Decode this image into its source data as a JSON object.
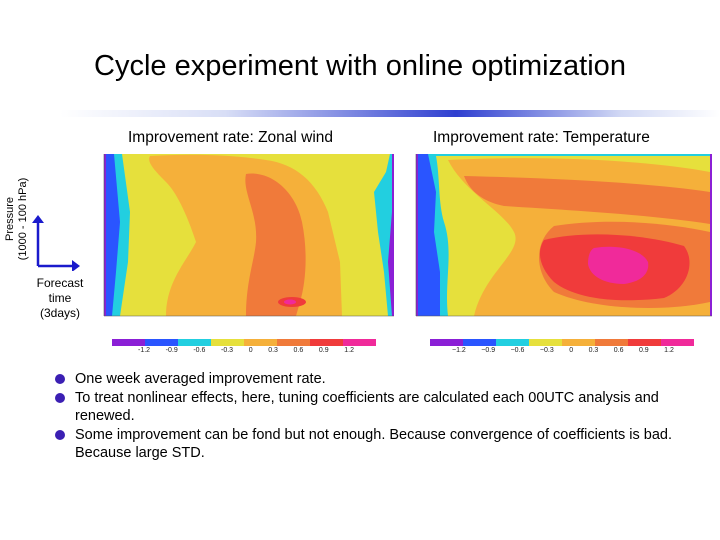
{
  "title": "Cycle experiment with online optimization",
  "panels": {
    "left_title": "Improvement rate: Zonal wind",
    "right_title": "Improvement rate: Temperature"
  },
  "axis": {
    "ylabel_line1": "Pressure",
    "ylabel_line2": "(1000 - 100 hPa)",
    "forecast_line1": "Forecast",
    "forecast_line2": "time",
    "forecast_line3": "(3days)"
  },
  "colorbar_left": [
    "-1.2",
    "-0.9",
    "-0.6",
    "-0.3",
    "0",
    "0.3",
    "0.6",
    "0.9",
    "1.2"
  ],
  "colorbar_right": [
    "−1.2",
    "−0.9",
    "−0.6",
    "−0.3",
    "0",
    "0.3",
    "0.6",
    "0.9",
    "1.2"
  ],
  "colors": {
    "purple": "#8b1fd6",
    "blue": "#2a55ff",
    "cyan": "#22cfe0",
    "yellow": "#e6e03c",
    "orange": "#f5b03a",
    "dark_orange": "#f07a3a",
    "red": "#f03b3b",
    "magenta": "#f02a9a",
    "bullet": "#3b1fb3"
  },
  "bullets": [
    "One week averaged improvement rate.",
    "To treat nonlinear effects, here, tuning coefficients are calculated each 00UTC analysis and renewed.",
    "Some improvement can be fond but not enough. Because convergence of coefficients is bad. Because large STD."
  ]
}
